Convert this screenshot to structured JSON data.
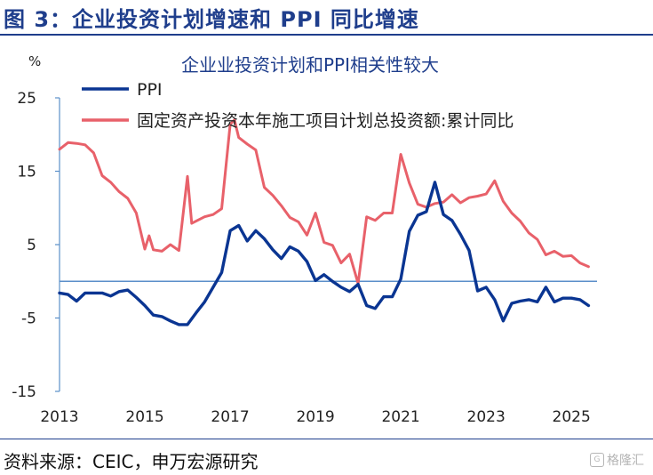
{
  "figure": {
    "label": "图 3：企业投资计划增速和 PPI 同比增速",
    "source": "资料来源：CEIC，申万宏源研究",
    "watermark": "格隆汇"
  },
  "chart_data": {
    "type": "line",
    "title": "企业业投资计划和PPI相关性较大",
    "ylabel": "%",
    "xlabel": "",
    "ylim": [
      -15,
      25
    ],
    "yticks": [
      -15,
      -5,
      5,
      15,
      25
    ],
    "xlim": [
      2013,
      2025.6
    ],
    "xticks": [
      "2013",
      "2015",
      "2017",
      "2019",
      "2021",
      "2023",
      "2025"
    ],
    "grid": false,
    "legend": "top-left",
    "series": [
      {
        "name": "PPI",
        "color": "#0a3592",
        "x": [
          2013.0,
          2013.2,
          2013.4,
          2013.6,
          2013.8,
          2014.0,
          2014.2,
          2014.4,
          2014.6,
          2014.8,
          2015.0,
          2015.2,
          2015.4,
          2015.6,
          2015.8,
          2016.0,
          2016.2,
          2016.4,
          2016.6,
          2016.8,
          2017.0,
          2017.2,
          2017.4,
          2017.6,
          2017.8,
          2018.0,
          2018.2,
          2018.4,
          2018.6,
          2018.8,
          2019.0,
          2019.2,
          2019.4,
          2019.6,
          2019.8,
          2020.0,
          2020.2,
          2020.4,
          2020.6,
          2020.8,
          2021.0,
          2021.2,
          2021.4,
          2021.6,
          2021.8,
          2022.0,
          2022.2,
          2022.4,
          2022.6,
          2022.8,
          2023.0,
          2023.2,
          2023.4,
          2023.6,
          2023.8,
          2024.0,
          2024.2,
          2024.4,
          2024.6,
          2024.8,
          2025.0,
          2025.2,
          2025.4
        ],
        "values": [
          -1.6,
          -1.8,
          -2.7,
          -1.6,
          -1.6,
          -1.6,
          -2.0,
          -1.4,
          -1.2,
          -2.2,
          -3.3,
          -4.6,
          -4.8,
          -5.4,
          -5.9,
          -5.9,
          -4.3,
          -2.8,
          -0.8,
          1.2,
          6.9,
          7.6,
          5.5,
          6.9,
          5.8,
          4.3,
          3.1,
          4.7,
          4.1,
          2.7,
          0.1,
          0.9,
          0.0,
          -0.8,
          -1.4,
          -0.4,
          -3.3,
          -3.7,
          -2.1,
          -2.1,
          0.3,
          6.8,
          9.0,
          9.5,
          13.5,
          9.1,
          8.3,
          6.4,
          4.2,
          -1.3,
          -0.8,
          -2.5,
          -5.4,
          -3.0,
          -2.7,
          -2.5,
          -2.8,
          -0.8,
          -2.8,
          -2.3,
          -2.3,
          -2.5,
          -3.3
        ]
      },
      {
        "name": "固定资产投资本年施工项目计划总投资额:累计同比",
        "color": "#e8616a",
        "x": [
          2013.0,
          2013.2,
          2013.4,
          2013.6,
          2013.8,
          2014.0,
          2014.2,
          2014.4,
          2014.6,
          2014.8,
          2015.0,
          2015.1,
          2015.2,
          2015.4,
          2015.6,
          2015.8,
          2016.0,
          2016.1,
          2016.2,
          2016.4,
          2016.6,
          2016.8,
          2017.0,
          2017.1,
          2017.2,
          2017.4,
          2017.6,
          2017.8,
          2018.0,
          2018.2,
          2018.4,
          2018.6,
          2018.8,
          2019.0,
          2019.2,
          2019.4,
          2019.6,
          2019.8,
          2020.0,
          2020.2,
          2020.4,
          2020.6,
          2020.8,
          2021.0,
          2021.2,
          2021.4,
          2021.6,
          2021.8,
          2022.0,
          2022.2,
          2022.4,
          2022.6,
          2022.8,
          2023.0,
          2023.2,
          2023.4,
          2023.6,
          2023.8,
          2024.0,
          2024.2,
          2024.4,
          2024.6,
          2024.8,
          2025.0,
          2025.2,
          2025.4
        ],
        "values": [
          18.0,
          18.9,
          18.8,
          18.6,
          17.5,
          14.4,
          13.5,
          12.2,
          11.3,
          9.3,
          4.4,
          6.2,
          4.3,
          4.1,
          5.0,
          4.2,
          14.3,
          7.9,
          8.2,
          8.8,
          9.1,
          9.9,
          21.4,
          22.0,
          19.6,
          18.7,
          17.9,
          12.8,
          11.7,
          10.3,
          8.7,
          8.1,
          6.3,
          9.3,
          5.3,
          4.9,
          2.5,
          3.7,
          -0.3,
          8.8,
          8.3,
          9.3,
          9.3,
          17.3,
          13.4,
          10.5,
          10.1,
          10.6,
          10.8,
          11.8,
          10.7,
          11.4,
          11.6,
          11.9,
          13.7,
          10.9,
          9.3,
          8.2,
          6.6,
          5.7,
          3.6,
          4.1,
          3.4,
          3.5,
          2.5,
          2.0
        ]
      }
    ]
  }
}
